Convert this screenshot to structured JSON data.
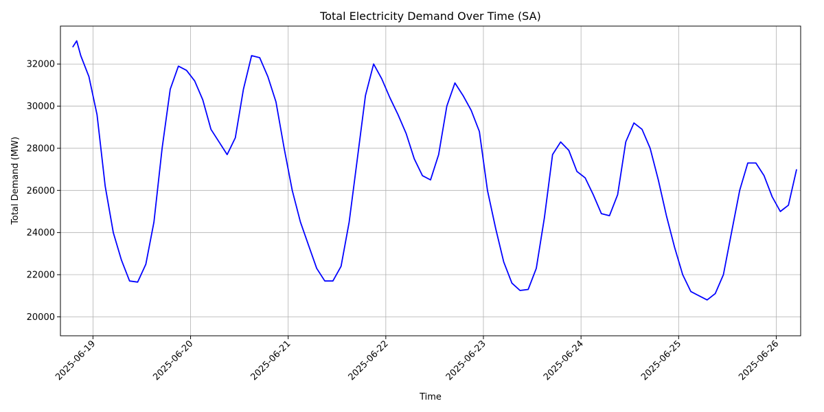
{
  "chart_data": {
    "type": "line",
    "title": "Total Electricity Demand Over Time (SA)",
    "xlabel": "Time",
    "ylabel": "Total Demand (MW)",
    "xlim": [
      "2025-06-18 16:00",
      "2025-06-26 06:00"
    ],
    "ylim": [
      19100,
      33800
    ],
    "grid": true,
    "x_ticks": [
      "2025-06-19",
      "2025-06-20",
      "2025-06-21",
      "2025-06-22",
      "2025-06-23",
      "2025-06-24",
      "2025-06-25",
      "2025-06-26"
    ],
    "y_ticks": [
      20000,
      22000,
      24000,
      26000,
      28000,
      30000,
      32000
    ],
    "series": [
      {
        "color": "#0000ff",
        "points": [
          [
            "2025-06-18 19:00",
            32800
          ],
          [
            "2025-06-18 20:00",
            33100
          ],
          [
            "2025-06-18 21:00",
            32400
          ],
          [
            "2025-06-18 23:00",
            31400
          ],
          [
            "2025-06-19 01:00",
            29600
          ],
          [
            "2025-06-19 03:00",
            26200
          ],
          [
            "2025-06-19 05:00",
            24000
          ],
          [
            "2025-06-19 07:00",
            22700
          ],
          [
            "2025-06-19 09:00",
            21700
          ],
          [
            "2025-06-19 11:00",
            21650
          ],
          [
            "2025-06-19 13:00",
            22500
          ],
          [
            "2025-06-19 15:00",
            24500
          ],
          [
            "2025-06-19 17:00",
            28000
          ],
          [
            "2025-06-19 19:00",
            30800
          ],
          [
            "2025-06-19 21:00",
            31900
          ],
          [
            "2025-06-19 23:00",
            31700
          ],
          [
            "2025-06-20 01:00",
            31200
          ],
          [
            "2025-06-20 03:00",
            30300
          ],
          [
            "2025-06-20 05:00",
            28900
          ],
          [
            "2025-06-20 07:00",
            28300
          ],
          [
            "2025-06-20 09:00",
            27700
          ],
          [
            "2025-06-20 11:00",
            28500
          ],
          [
            "2025-06-20 13:00",
            30800
          ],
          [
            "2025-06-20 15:00",
            32400
          ],
          [
            "2025-06-20 17:00",
            32300
          ],
          [
            "2025-06-20 19:00",
            31400
          ],
          [
            "2025-06-20 21:00",
            30200
          ],
          [
            "2025-06-20 23:00",
            28000
          ],
          [
            "2025-06-21 01:00",
            26000
          ],
          [
            "2025-06-21 03:00",
            24500
          ],
          [
            "2025-06-21 05:00",
            23400
          ],
          [
            "2025-06-21 07:00",
            22300
          ],
          [
            "2025-06-21 09:00",
            21700
          ],
          [
            "2025-06-21 11:00",
            21700
          ],
          [
            "2025-06-21 13:00",
            22400
          ],
          [
            "2025-06-21 15:00",
            24500
          ],
          [
            "2025-06-21 17:00",
            27500
          ],
          [
            "2025-06-21 19:00",
            30500
          ],
          [
            "2025-06-21 21:00",
            32000
          ],
          [
            "2025-06-21 23:00",
            31300
          ],
          [
            "2025-06-22 01:00",
            30400
          ],
          [
            "2025-06-22 03:00",
            29600
          ],
          [
            "2025-06-22 05:00",
            28700
          ],
          [
            "2025-06-22 07:00",
            27500
          ],
          [
            "2025-06-22 09:00",
            26700
          ],
          [
            "2025-06-22 11:00",
            26500
          ],
          [
            "2025-06-22 13:00",
            27700
          ],
          [
            "2025-06-22 15:00",
            30000
          ],
          [
            "2025-06-22 17:00",
            31100
          ],
          [
            "2025-06-22 19:00",
            30500
          ],
          [
            "2025-06-22 21:00",
            29800
          ],
          [
            "2025-06-22 23:00",
            28800
          ],
          [
            "2025-06-23 01:00",
            26000
          ],
          [
            "2025-06-23 03:00",
            24200
          ],
          [
            "2025-06-23 05:00",
            22600
          ],
          [
            "2025-06-23 07:00",
            21600
          ],
          [
            "2025-06-23 09:00",
            21250
          ],
          [
            "2025-06-23 11:00",
            21300
          ],
          [
            "2025-06-23 13:00",
            22300
          ],
          [
            "2025-06-23 15:00",
            24700
          ],
          [
            "2025-06-23 17:00",
            27700
          ],
          [
            "2025-06-23 19:00",
            28300
          ],
          [
            "2025-06-23 21:00",
            27900
          ],
          [
            "2025-06-23 23:00",
            26900
          ],
          [
            "2025-06-24 01:00",
            26600
          ],
          [
            "2025-06-24 03:00",
            25800
          ],
          [
            "2025-06-24 05:00",
            24900
          ],
          [
            "2025-06-24 07:00",
            24800
          ],
          [
            "2025-06-24 09:00",
            25800
          ],
          [
            "2025-06-24 11:00",
            28300
          ],
          [
            "2025-06-24 13:00",
            29200
          ],
          [
            "2025-06-24 15:00",
            28900
          ],
          [
            "2025-06-24 17:00",
            28000
          ],
          [
            "2025-06-24 19:00",
            26500
          ],
          [
            "2025-06-24 21:00",
            24800
          ],
          [
            "2025-06-24 23:00",
            23300
          ],
          [
            "2025-06-25 01:00",
            22000
          ],
          [
            "2025-06-25 03:00",
            21200
          ],
          [
            "2025-06-25 05:00",
            21000
          ],
          [
            "2025-06-25 07:00",
            20800
          ],
          [
            "2025-06-25 09:00",
            21100
          ],
          [
            "2025-06-25 11:00",
            22000
          ],
          [
            "2025-06-25 13:00",
            24000
          ],
          [
            "2025-06-25 15:00",
            26000
          ],
          [
            "2025-06-25 17:00",
            27300
          ],
          [
            "2025-06-25 19:00",
            27300
          ],
          [
            "2025-06-25 21:00",
            26700
          ],
          [
            "2025-06-25 23:00",
            25700
          ],
          [
            "2025-06-26 01:00",
            25000
          ],
          [
            "2025-06-26 03:00",
            25300
          ],
          [
            "2025-06-26 05:00",
            27000
          ]
        ]
      }
    ]
  }
}
